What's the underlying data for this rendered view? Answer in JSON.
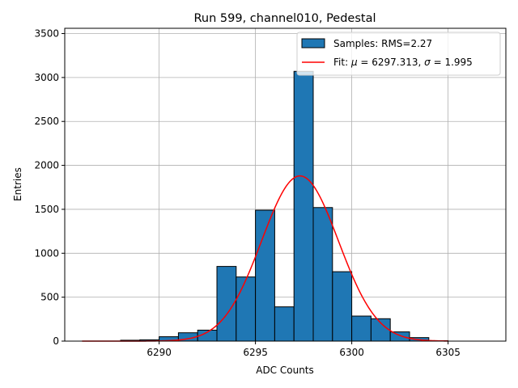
{
  "chart_data": {
    "type": "bar",
    "title": "Run 599, channel010, Pedestal",
    "xlabel": "ADC Counts",
    "ylabel": "Entries",
    "xlim": [
      6285.1,
      6308.0
    ],
    "ylim": [
      0,
      3560
    ],
    "xticks": [
      6290,
      6295,
      6300,
      6305
    ],
    "yticks": [
      0,
      500,
      1000,
      1500,
      2000,
      2500,
      3000,
      3500
    ],
    "grid": true,
    "legend_position": "top-right",
    "bin_edges": [
      6288,
      6289,
      6290,
      6291,
      6292,
      6293,
      6294,
      6295,
      6296,
      6297,
      6298,
      6299,
      6300,
      6301,
      6302,
      6303,
      6304,
      6305
    ],
    "counts": [
      10,
      15,
      50,
      95,
      125,
      850,
      730,
      1490,
      390,
      3070,
      1520,
      790,
      285,
      255,
      105,
      40,
      5
    ],
    "bar_color": "#1f77b4",
    "fit": {
      "mu": 6297.313,
      "sigma": 1.995,
      "amplitude": 1880,
      "x_range": [
        6286,
        6305
      ],
      "color": "#ff0000"
    },
    "legend": [
      {
        "label": "Samples: RMS=2.27",
        "kind": "patch",
        "color": "#1f77b4"
      },
      {
        "label_prefix": "Fit: ",
        "mu_symbol": "μ",
        "mu_text": " = 6297.313, ",
        "sigma_symbol": "σ",
        "sigma_text": " = 1.995",
        "kind": "line",
        "color": "#ff0000"
      }
    ]
  }
}
